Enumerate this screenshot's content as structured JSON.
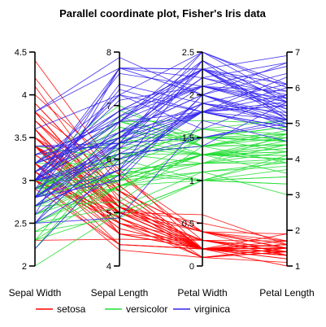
{
  "chart_data": {
    "type": "parallel-coordinates",
    "title": "Parallel coordinate plot, Fisher's Iris data",
    "grid": false,
    "legend_position": "bottom",
    "axes": [
      {
        "name": "Sepal Width",
        "range": [
          2,
          4.5
        ],
        "ticks": [
          "2",
          "2.5",
          "3",
          "3.5",
          "4",
          "4.5"
        ],
        "tick_side": "left"
      },
      {
        "name": "Sepal Length",
        "range": [
          4,
          8
        ],
        "ticks": [
          "4",
          "5",
          "6",
          "7",
          "8"
        ],
        "tick_side": "left"
      },
      {
        "name": "Petal Width",
        "range": [
          0,
          2.5
        ],
        "ticks": [
          "0",
          "0.5",
          "1",
          "1.5",
          "2",
          "2.5"
        ],
        "tick_side": "left"
      },
      {
        "name": "Petal Length",
        "range": [
          1,
          7
        ],
        "ticks": [
          "1",
          "2",
          "3",
          "4",
          "5",
          "6",
          "7"
        ],
        "tick_side": "right"
      }
    ],
    "series": [
      {
        "name": "setosa",
        "color": "#ff0000",
        "rows": [
          [
            3.5,
            5.1,
            0.2,
            1.4
          ],
          [
            3.0,
            4.9,
            0.2,
            1.4
          ],
          [
            3.2,
            4.7,
            0.2,
            1.3
          ],
          [
            3.1,
            4.6,
            0.2,
            1.5
          ],
          [
            3.6,
            5.0,
            0.2,
            1.4
          ],
          [
            3.9,
            5.4,
            0.4,
            1.7
          ],
          [
            3.4,
            4.6,
            0.3,
            1.4
          ],
          [
            3.4,
            5.0,
            0.2,
            1.5
          ],
          [
            2.9,
            4.4,
            0.2,
            1.4
          ],
          [
            3.1,
            4.9,
            0.1,
            1.5
          ],
          [
            3.7,
            5.4,
            0.2,
            1.5
          ],
          [
            3.4,
            4.8,
            0.2,
            1.6
          ],
          [
            3.0,
            4.8,
            0.1,
            1.4
          ],
          [
            3.0,
            4.3,
            0.1,
            1.1
          ],
          [
            4.0,
            5.8,
            0.2,
            1.2
          ],
          [
            4.4,
            5.7,
            0.4,
            1.5
          ],
          [
            3.9,
            5.4,
            0.4,
            1.3
          ],
          [
            3.5,
            5.1,
            0.3,
            1.4
          ],
          [
            3.8,
            5.7,
            0.3,
            1.7
          ],
          [
            3.8,
            5.1,
            0.3,
            1.5
          ],
          [
            3.4,
            5.4,
            0.2,
            1.7
          ],
          [
            3.7,
            5.1,
            0.4,
            1.5
          ],
          [
            3.6,
            4.6,
            0.2,
            1.0
          ],
          [
            3.3,
            5.1,
            0.5,
            1.7
          ],
          [
            3.4,
            4.8,
            0.2,
            1.9
          ],
          [
            3.0,
            5.0,
            0.2,
            1.6
          ],
          [
            3.4,
            5.0,
            0.4,
            1.6
          ],
          [
            3.5,
            5.2,
            0.2,
            1.5
          ],
          [
            3.4,
            5.2,
            0.2,
            1.4
          ],
          [
            3.2,
            4.7,
            0.2,
            1.6
          ],
          [
            3.1,
            4.8,
            0.2,
            1.6
          ],
          [
            3.4,
            5.4,
            0.4,
            1.5
          ],
          [
            4.1,
            5.2,
            0.1,
            1.5
          ],
          [
            4.2,
            5.5,
            0.2,
            1.4
          ],
          [
            3.1,
            4.9,
            0.2,
            1.5
          ],
          [
            3.2,
            5.0,
            0.2,
            1.2
          ],
          [
            3.5,
            5.5,
            0.2,
            1.3
          ],
          [
            3.6,
            4.9,
            0.1,
            1.4
          ],
          [
            3.0,
            4.4,
            0.2,
            1.3
          ],
          [
            3.4,
            5.1,
            0.2,
            1.5
          ],
          [
            3.5,
            5.0,
            0.3,
            1.3
          ],
          [
            2.3,
            4.5,
            0.3,
            1.3
          ],
          [
            3.2,
            4.4,
            0.2,
            1.3
          ],
          [
            3.5,
            5.0,
            0.6,
            1.6
          ],
          [
            3.8,
            5.1,
            0.4,
            1.9
          ],
          [
            3.0,
            4.8,
            0.3,
            1.4
          ],
          [
            3.8,
            5.1,
            0.2,
            1.6
          ],
          [
            3.2,
            4.6,
            0.2,
            1.4
          ],
          [
            3.7,
            5.3,
            0.2,
            1.5
          ],
          [
            3.3,
            5.0,
            0.2,
            1.4
          ]
        ]
      },
      {
        "name": "versicolor",
        "color": "#22dd33",
        "rows": [
          [
            3.2,
            7.0,
            1.4,
            4.7
          ],
          [
            3.2,
            6.4,
            1.5,
            4.5
          ],
          [
            3.1,
            6.9,
            1.5,
            4.9
          ],
          [
            2.3,
            5.5,
            1.3,
            4.0
          ],
          [
            2.8,
            6.5,
            1.5,
            4.6
          ],
          [
            2.8,
            5.7,
            1.3,
            4.5
          ],
          [
            3.3,
            6.3,
            1.6,
            4.7
          ],
          [
            2.4,
            4.9,
            1.0,
            3.3
          ],
          [
            2.9,
            6.6,
            1.3,
            4.6
          ],
          [
            2.7,
            5.2,
            1.4,
            3.9
          ],
          [
            2.0,
            5.0,
            1.0,
            3.5
          ],
          [
            3.0,
            5.9,
            1.5,
            4.2
          ],
          [
            2.2,
            6.0,
            1.0,
            4.0
          ],
          [
            2.9,
            6.1,
            1.4,
            4.7
          ],
          [
            2.9,
            5.6,
            1.3,
            3.6
          ],
          [
            3.1,
            6.7,
            1.4,
            4.4
          ],
          [
            3.0,
            5.6,
            1.5,
            4.5
          ],
          [
            2.7,
            5.8,
            1.0,
            4.1
          ],
          [
            2.2,
            6.2,
            1.5,
            4.5
          ],
          [
            2.5,
            5.6,
            1.1,
            3.9
          ],
          [
            3.2,
            5.9,
            1.8,
            4.8
          ],
          [
            2.8,
            6.1,
            1.3,
            4.0
          ],
          [
            2.5,
            6.3,
            1.5,
            4.9
          ],
          [
            2.8,
            6.1,
            1.2,
            4.7
          ],
          [
            2.9,
            6.4,
            1.3,
            4.3
          ],
          [
            3.0,
            6.6,
            1.4,
            4.4
          ],
          [
            2.8,
            6.8,
            1.4,
            4.8
          ],
          [
            3.0,
            6.7,
            1.7,
            5.0
          ],
          [
            2.9,
            6.0,
            1.5,
            4.5
          ],
          [
            2.6,
            5.7,
            1.0,
            3.5
          ],
          [
            2.4,
            5.5,
            1.1,
            3.8
          ],
          [
            2.4,
            5.5,
            1.0,
            3.7
          ],
          [
            2.7,
            5.8,
            1.2,
            3.9
          ],
          [
            2.7,
            6.0,
            1.6,
            5.1
          ],
          [
            3.0,
            5.4,
            1.5,
            4.5
          ],
          [
            3.4,
            6.0,
            1.6,
            4.5
          ],
          [
            3.1,
            6.7,
            1.5,
            4.7
          ],
          [
            2.3,
            6.3,
            1.3,
            4.4
          ],
          [
            3.0,
            5.6,
            1.3,
            4.1
          ],
          [
            2.5,
            5.5,
            1.3,
            4.0
          ],
          [
            2.6,
            5.5,
            1.2,
            4.4
          ],
          [
            3.0,
            6.1,
            1.4,
            4.6
          ],
          [
            2.6,
            5.8,
            1.2,
            4.0
          ],
          [
            2.3,
            5.0,
            1.0,
            3.3
          ],
          [
            2.7,
            5.6,
            1.3,
            4.2
          ],
          [
            3.0,
            5.7,
            1.2,
            4.2
          ],
          [
            2.9,
            5.7,
            1.3,
            4.2
          ],
          [
            2.9,
            6.2,
            1.3,
            4.3
          ],
          [
            2.5,
            5.1,
            1.1,
            3.0
          ],
          [
            2.8,
            5.7,
            1.3,
            4.1
          ]
        ]
      },
      {
        "name": "virginica",
        "color": "#3322ee",
        "rows": [
          [
            3.3,
            6.3,
            2.5,
            6.0
          ],
          [
            2.7,
            5.8,
            1.9,
            5.1
          ],
          [
            3.0,
            7.1,
            2.1,
            5.9
          ],
          [
            2.9,
            6.3,
            1.8,
            5.6
          ],
          [
            3.0,
            6.5,
            2.2,
            5.8
          ],
          [
            3.0,
            7.6,
            2.1,
            6.6
          ],
          [
            2.5,
            4.9,
            1.7,
            4.5
          ],
          [
            2.9,
            7.3,
            1.8,
            6.3
          ],
          [
            2.5,
            6.7,
            1.8,
            5.8
          ],
          [
            3.6,
            7.2,
            2.5,
            6.1
          ],
          [
            3.2,
            6.5,
            2.0,
            5.1
          ],
          [
            2.7,
            6.4,
            1.9,
            5.3
          ],
          [
            3.0,
            6.8,
            2.1,
            5.5
          ],
          [
            2.5,
            5.7,
            2.0,
            5.0
          ],
          [
            2.8,
            5.8,
            2.4,
            5.1
          ],
          [
            3.2,
            6.4,
            2.3,
            5.3
          ],
          [
            3.0,
            6.5,
            1.8,
            5.5
          ],
          [
            3.8,
            7.7,
            2.2,
            6.7
          ],
          [
            2.6,
            7.7,
            2.3,
            6.9
          ],
          [
            2.2,
            6.0,
            1.5,
            5.0
          ],
          [
            3.2,
            6.9,
            2.3,
            5.7
          ],
          [
            2.8,
            5.6,
            2.0,
            4.9
          ],
          [
            2.8,
            7.7,
            2.0,
            6.7
          ],
          [
            2.7,
            6.3,
            1.8,
            4.9
          ],
          [
            3.3,
            6.7,
            2.1,
            5.7
          ],
          [
            3.2,
            7.2,
            1.8,
            6.0
          ],
          [
            2.8,
            6.2,
            1.8,
            4.8
          ],
          [
            3.0,
            6.1,
            1.8,
            4.9
          ],
          [
            2.8,
            6.4,
            2.1,
            5.6
          ],
          [
            3.0,
            7.2,
            1.6,
            5.8
          ],
          [
            2.8,
            7.4,
            1.9,
            6.1
          ],
          [
            3.8,
            7.9,
            2.0,
            6.4
          ],
          [
            2.8,
            6.4,
            2.2,
            5.6
          ],
          [
            2.8,
            6.3,
            1.5,
            5.1
          ],
          [
            2.6,
            6.1,
            1.4,
            5.6
          ],
          [
            3.0,
            7.7,
            2.3,
            6.1
          ],
          [
            3.4,
            6.3,
            2.4,
            5.6
          ],
          [
            3.1,
            6.4,
            1.8,
            5.5
          ],
          [
            3.0,
            6.0,
            1.8,
            4.8
          ],
          [
            3.1,
            6.9,
            2.1,
            5.4
          ],
          [
            3.1,
            6.7,
            2.4,
            5.6
          ],
          [
            3.1,
            6.9,
            2.3,
            5.1
          ],
          [
            2.7,
            5.8,
            1.9,
            5.1
          ],
          [
            3.2,
            6.8,
            2.3,
            5.9
          ],
          [
            3.3,
            6.7,
            2.5,
            5.7
          ],
          [
            3.0,
            6.7,
            2.3,
            5.2
          ],
          [
            2.5,
            6.3,
            1.9,
            5.0
          ],
          [
            3.0,
            6.5,
            2.0,
            5.2
          ],
          [
            3.4,
            6.2,
            2.3,
            5.4
          ],
          [
            3.0,
            5.9,
            1.8,
            5.1
          ]
        ]
      }
    ]
  }
}
